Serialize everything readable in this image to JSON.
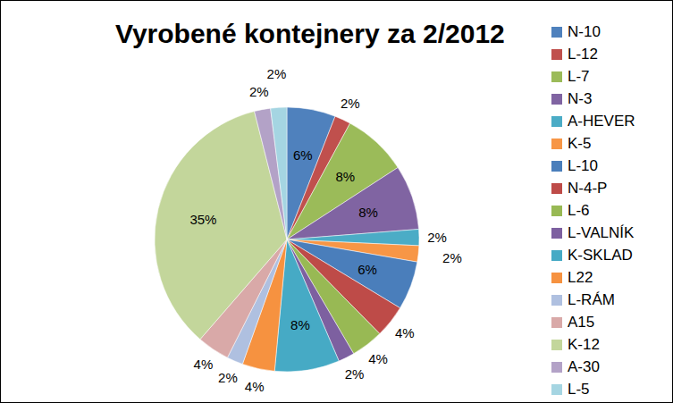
{
  "chart_data": {
    "type": "pie",
    "title": "Vyrobené kontejnery za 2/2012",
    "categories": [
      "N-10",
      "L-12",
      "L-7",
      "N-3",
      "A-HEVER",
      "K-5",
      "L-10",
      "N-4-P",
      "L-6",
      "L-VALNÍK",
      "K-SKLAD",
      "L22",
      "L-RÁM",
      "A15",
      "K-12",
      "A-30",
      "L-5"
    ],
    "values": [
      6,
      2,
      8,
      8,
      2,
      2,
      6,
      4,
      4,
      2,
      8,
      4,
      2,
      4,
      35,
      2,
      2
    ],
    "value_labels": [
      "6%",
      "2%",
      "8%",
      "8%",
      "2%",
      "2%",
      "6%",
      "4%",
      "4%",
      "2%",
      "8%",
      "4%",
      "2%",
      "4%",
      "35%",
      "2%",
      "2%"
    ],
    "colors": [
      "#4F81BD",
      "#C0504D",
      "#9BBB59",
      "#8064A2",
      "#4BACC6",
      "#F79646",
      "#4A7EBB",
      "#BE4B48",
      "#98B954",
      "#7D60A0",
      "#46AAC5",
      "#F69240",
      "#AFC0E0",
      "#D9A9A8",
      "#C3D69B",
      "#B3A2C7",
      "#A5D5E2"
    ],
    "legend": "right",
    "data_labels": true
  }
}
